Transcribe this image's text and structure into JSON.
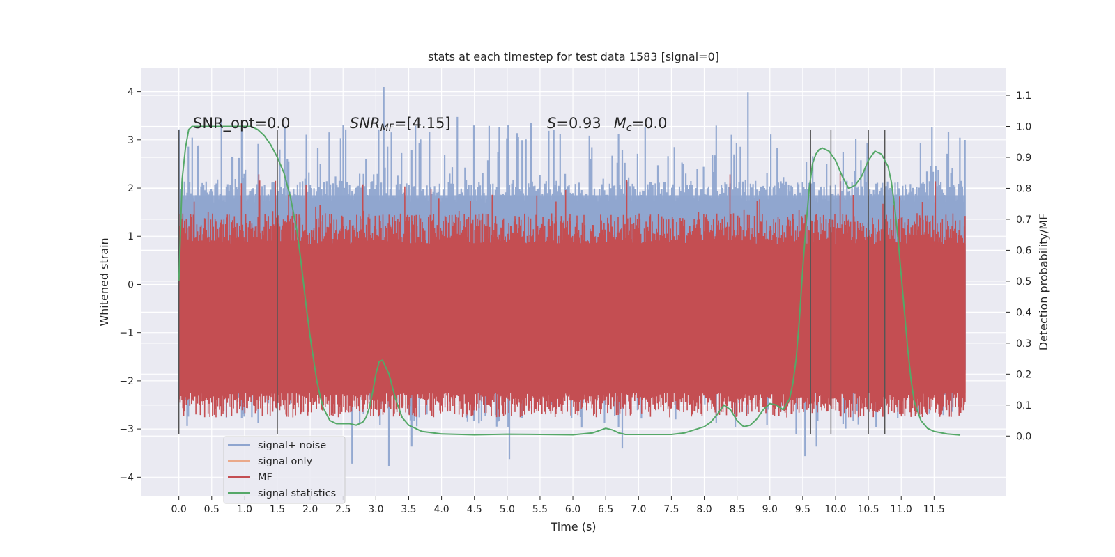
{
  "chart_data": {
    "type": "line",
    "title": "stats at each timestep for test data 1583 [signal=0]",
    "xlabel": "Time (s)",
    "ylabel_left": "Whitened strain",
    "ylabel_right": "Detection probability/MF",
    "xlim": [
      -0.58,
      12.6
    ],
    "ylim_left": [
      -4.4,
      4.5
    ],
    "ylim_right": [
      -0.195,
      1.19
    ],
    "x_ticks": [
      "0.0",
      "0.5",
      "1.0",
      "1.5",
      "2.0",
      "2.5",
      "3.0",
      "3.5",
      "4.0",
      "4.5",
      "5.0",
      "5.5",
      "6.0",
      "6.5",
      "7.0",
      "7.5",
      "8.0",
      "8.5",
      "9.0",
      "9.5",
      "10.0",
      "10.5",
      "11.0",
      "11.5"
    ],
    "y_ticks_left": [
      "4",
      "3",
      "2",
      "1",
      "0",
      "−1",
      "−2",
      "−3",
      "−4"
    ],
    "y_ticks_right": [
      "0.0",
      "0.1",
      "0.2",
      "0.3",
      "0.4",
      "0.5",
      "0.6",
      "0.7",
      "0.8",
      "0.9",
      "1.0",
      "1.1"
    ],
    "grid": true,
    "legend": {
      "placement": "lower-left",
      "entries": [
        {
          "name": "signal+ noise",
          "color": "#8fa5cf"
        },
        {
          "name": "signal only",
          "color": "#eaa98a"
        },
        {
          "name": "MF",
          "color": "#c44e52"
        },
        {
          "name": "signal statistics",
          "color": "#55a868"
        }
      ]
    },
    "annotations": {
      "snr_opt": {
        "label": "SNR_opt=",
        "value": "0.0"
      },
      "snr_mf": {
        "base": "SNR",
        "sub": "MF",
        "rest": "=[4.15]"
      },
      "stats": {
        "s_label": "S",
        "s_value": "=0.93",
        "m_label": "M",
        "m_sub": "c",
        "m_value": "=0.0"
      }
    },
    "time_range": [
      0.0,
      11.98
    ],
    "noise_band": {
      "lower": -1.85,
      "upper": 1.85,
      "typical_peak": 3.2,
      "max": 4.1,
      "min": -3.9
    },
    "mf_band": {
      "lower": 0.08,
      "upper": 0.7,
      "peak": 0.85
    },
    "vertical_markers": [
      0.0,
      1.5,
      9.62,
      9.93,
      10.5,
      10.75
    ],
    "marker_range": [
      -3.1,
      3.2
    ],
    "series": [
      {
        "name": "signal statistics",
        "axis": "right",
        "x": [
          0.0,
          0.05,
          0.1,
          0.15,
          0.2,
          0.3,
          0.5,
          0.8,
          1.0,
          1.1,
          1.2,
          1.3,
          1.4,
          1.5,
          1.6,
          1.7,
          1.8,
          1.85,
          1.9,
          1.95,
          2.0,
          2.05,
          2.1,
          2.15,
          2.2,
          2.3,
          2.4,
          2.5,
          2.6,
          2.7,
          2.8,
          2.85,
          2.9,
          2.95,
          3.0,
          3.05,
          3.1,
          3.2,
          3.3,
          3.4,
          3.5,
          3.7,
          4.0,
          4.5,
          5.0,
          5.5,
          6.0,
          6.3,
          6.5,
          6.6,
          6.7,
          6.8,
          7.0,
          7.5,
          7.7,
          8.0,
          8.1,
          8.2,
          8.3,
          8.4,
          8.5,
          8.6,
          8.7,
          8.8,
          8.9,
          9.0,
          9.1,
          9.2,
          9.3,
          9.35,
          9.4,
          9.45,
          9.5,
          9.55,
          9.6,
          9.65,
          9.7,
          9.75,
          9.8,
          9.9,
          10.0,
          10.1,
          10.2,
          10.3,
          10.4,
          10.5,
          10.6,
          10.7,
          10.8,
          10.85,
          10.9,
          10.95,
          11.0,
          11.05,
          11.1,
          11.15,
          11.2,
          11.3,
          11.4,
          11.5,
          11.7,
          11.9
        ],
        "y": [
          0.5,
          0.83,
          0.93,
          0.99,
          1.0,
          1.0,
          1.0,
          1.0,
          1.0,
          1.0,
          0.99,
          0.97,
          0.94,
          0.9,
          0.85,
          0.77,
          0.66,
          0.58,
          0.49,
          0.4,
          0.32,
          0.25,
          0.18,
          0.13,
          0.09,
          0.05,
          0.04,
          0.04,
          0.04,
          0.035,
          0.045,
          0.06,
          0.09,
          0.14,
          0.2,
          0.24,
          0.245,
          0.2,
          0.12,
          0.06,
          0.035,
          0.015,
          0.007,
          0.004,
          0.006,
          0.005,
          0.004,
          0.01,
          0.025,
          0.02,
          0.01,
          0.005,
          0.005,
          0.005,
          0.01,
          0.03,
          0.045,
          0.07,
          0.1,
          0.085,
          0.05,
          0.03,
          0.035,
          0.055,
          0.085,
          0.105,
          0.1,
          0.085,
          0.12,
          0.17,
          0.25,
          0.38,
          0.54,
          0.68,
          0.8,
          0.88,
          0.91,
          0.925,
          0.93,
          0.92,
          0.89,
          0.84,
          0.8,
          0.81,
          0.84,
          0.89,
          0.92,
          0.91,
          0.87,
          0.82,
          0.74,
          0.64,
          0.52,
          0.4,
          0.28,
          0.18,
          0.11,
          0.05,
          0.025,
          0.015,
          0.007,
          0.003
        ]
      }
    ]
  }
}
